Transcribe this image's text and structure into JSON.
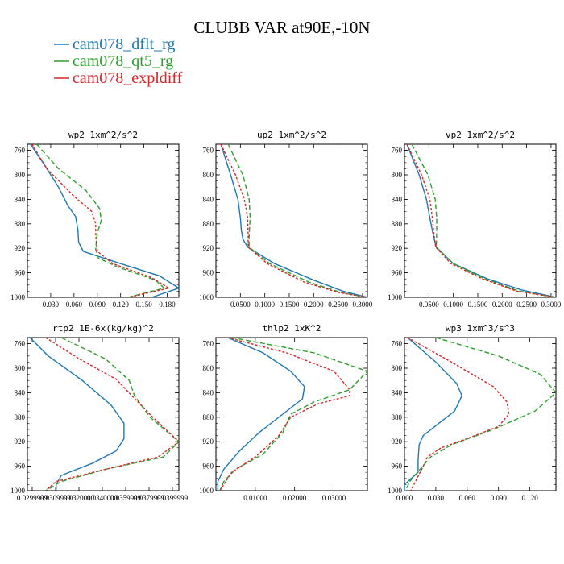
{
  "figure": {
    "title": "CLUBB VAR at90E,-10N",
    "legend": [
      {
        "label": "cam078_dflt_rg",
        "color": "#1f77b4"
      },
      {
        "label": "cam078_qt5_rg",
        "color": "#2ca02c"
      },
      {
        "label": "cam078_expldiff",
        "color": "#d62728"
      }
    ]
  },
  "chart_data": [
    {
      "type": "line",
      "title": "wp2  1xm^2/s^2",
      "xlim": [
        0.0,
        0.195
      ],
      "ylim": [
        1000,
        750
      ],
      "xticks": [
        0.03,
        0.06,
        0.09,
        0.12,
        0.15,
        0.18
      ],
      "xticklabels": [
        "0.030",
        "0.060",
        "0.090",
        "0.120",
        "0.150",
        "0.180"
      ],
      "yticks": [
        760,
        800,
        840,
        880,
        920,
        960,
        1000
      ],
      "series": [
        {
          "name": "cam078_dflt_rg",
          "color": "#1f77b4",
          "dash": "",
          "x": [
            0.004,
            0.02,
            0.04,
            0.052,
            0.062,
            0.065,
            0.066,
            0.072,
            0.12,
            0.17,
            0.195,
            0.16
          ],
          "y": [
            750,
            780,
            820,
            850,
            868,
            890,
            910,
            925,
            945,
            965,
            985,
            1000
          ]
        },
        {
          "name": "cam078_qt5_rg",
          "color": "#2ca02c",
          "dash": "6 3",
          "x": [
            0.012,
            0.04,
            0.075,
            0.093,
            0.095,
            0.09,
            0.088,
            0.09,
            0.115,
            0.165,
            0.176,
            0.13
          ],
          "y": [
            750,
            790,
            825,
            855,
            875,
            895,
            920,
            935,
            950,
            972,
            985,
            1000
          ]
        },
        {
          "name": "cam078_expldiff",
          "color": "#d62728",
          "dash": "3 2",
          "x": [
            0.006,
            0.025,
            0.06,
            0.083,
            0.088,
            0.088,
            0.09,
            0.11,
            0.16,
            0.182,
            0.13
          ],
          "y": [
            750,
            790,
            835,
            860,
            880,
            900,
            925,
            945,
            968,
            985,
            1000
          ]
        }
      ]
    },
    {
      "type": "line",
      "title": "up2  1xm^2/s^2",
      "xlim": [
        0.0,
        0.31
      ],
      "ylim": [
        1000,
        750
      ],
      "xticks": [
        0.05,
        0.1,
        0.15,
        0.2,
        0.25,
        0.3
      ],
      "xticklabels": [
        "0.0500",
        "0.1000",
        "0.1500",
        "0.2000",
        "0.2500",
        "0.3000"
      ],
      "yticks": [
        760,
        800,
        840,
        880,
        920,
        960,
        1000
      ],
      "series": [
        {
          "name": "cam078_dflt_rg",
          "color": "#1f77b4",
          "dash": "",
          "x": [
            0.01,
            0.03,
            0.045,
            0.05,
            0.052,
            0.055,
            0.065,
            0.12,
            0.2,
            0.26,
            0.31
          ],
          "y": [
            750,
            800,
            840,
            870,
            890,
            905,
            918,
            945,
            972,
            990,
            1000
          ]
        },
        {
          "name": "cam078_qt5_rg",
          "color": "#2ca02c",
          "dash": "6 3",
          "x": [
            0.025,
            0.055,
            0.068,
            0.07,
            0.068,
            0.068,
            0.11,
            0.19,
            0.255,
            0.31
          ],
          "y": [
            750,
            800,
            840,
            870,
            900,
            918,
            945,
            975,
            992,
            1000
          ]
        },
        {
          "name": "cam078_expldiff",
          "color": "#d62728",
          "dash": "3 2",
          "x": [
            0.01,
            0.04,
            0.058,
            0.065,
            0.066,
            0.066,
            0.105,
            0.18,
            0.25,
            0.31
          ],
          "y": [
            750,
            800,
            840,
            870,
            900,
            918,
            945,
            975,
            992,
            1000
          ]
        }
      ]
    },
    {
      "type": "line",
      "title": "vp2  1xm^2/s^2",
      "xlim": [
        0.0,
        0.31
      ],
      "ylim": [
        1000,
        750
      ],
      "xticks": [
        0.05,
        0.1,
        0.15,
        0.2,
        0.25,
        0.3
      ],
      "xticklabels": [
        "0.0500",
        "0.1000",
        "0.1500",
        "0.2000",
        "0.2500",
        "0.3000"
      ],
      "yticks": [
        760,
        800,
        840,
        880,
        920,
        960,
        1000
      ],
      "series": [
        {
          "name": "cam078_dflt_rg",
          "color": "#1f77b4",
          "dash": "",
          "x": [
            0.005,
            0.03,
            0.045,
            0.052,
            0.058,
            0.065,
            0.1,
            0.17,
            0.24,
            0.31
          ],
          "y": [
            750,
            800,
            840,
            870,
            895,
            918,
            945,
            970,
            988,
            1000
          ]
        },
        {
          "name": "cam078_qt5_rg",
          "color": "#2ca02c",
          "dash": "6 3",
          "x": [
            0.015,
            0.048,
            0.063,
            0.066,
            0.066,
            0.065,
            0.1,
            0.165,
            0.235,
            0.31
          ],
          "y": [
            750,
            800,
            840,
            870,
            895,
            918,
            945,
            970,
            990,
            1000
          ]
        },
        {
          "name": "cam078_expldiff",
          "color": "#d62728",
          "dash": "3 2",
          "x": [
            0.005,
            0.035,
            0.052,
            0.057,
            0.06,
            0.064,
            0.095,
            0.16,
            0.23,
            0.31
          ],
          "y": [
            750,
            800,
            840,
            870,
            895,
            918,
            945,
            970,
            990,
            1000
          ]
        }
      ]
    },
    {
      "type": "line",
      "title": "rtp2  1E-6x(kg/kg)^2",
      "xlim": [
        0.0255,
        0.0313
      ],
      "ylim": [
        1000,
        750
      ],
      "xticks": [
        0.0299999,
        0.0309999,
        0.032,
        0.034,
        0.0359999,
        0.0379999,
        0.0399999
      ],
      "xticklabels": [
        "0.0299999",
        "0.0309999",
        "0.0320000",
        "0.0340000",
        "0.0359999",
        "0.0379999",
        "0.0399999"
      ],
      "tick_positions_hint": "crowded",
      "yticks": [
        760,
        800,
        840,
        880,
        920,
        960,
        1000
      ],
      "series": [
        {
          "name": "cam078_dflt_rg",
          "color": "#1f77b4",
          "dash": "",
          "x": [
            0.0256,
            0.0263,
            0.0276,
            0.0287,
            0.0292,
            0.0292,
            0.0289,
            0.028,
            0.0268,
            0.0266,
            0.0266
          ],
          "y": [
            750,
            780,
            820,
            860,
            890,
            915,
            935,
            955,
            975,
            990,
            1000
          ]
        },
        {
          "name": "cam078_qt5_rg",
          "color": "#2ca02c",
          "dash": "6 3",
          "x": [
            0.0268,
            0.0285,
            0.0294,
            0.0296,
            0.0302,
            0.0313,
            0.0307,
            0.0285,
            0.0268,
            0.0262
          ],
          "y": [
            750,
            785,
            820,
            845,
            880,
            920,
            945,
            965,
            985,
            1000
          ]
        },
        {
          "name": "cam078_expldiff",
          "color": "#d62728",
          "dash": "3 2",
          "x": [
            0.0262,
            0.0275,
            0.0289,
            0.0295,
            0.0303,
            0.0313,
            0.0305,
            0.0283,
            0.0266,
            0.0262
          ],
          "y": [
            750,
            785,
            818,
            845,
            880,
            920,
            945,
            967,
            985,
            1000
          ]
        }
      ]
    },
    {
      "type": "line",
      "title": "thlp2  1xK^2",
      "xlim": [
        0.0,
        0.0385
      ],
      "ylim": [
        1000,
        750
      ],
      "xticks": [
        0.01,
        0.02,
        0.03
      ],
      "xticklabels": [
        "0.01000",
        "0.02000",
        "0.03000"
      ],
      "yticks": [
        760,
        800,
        840,
        880,
        920,
        960,
        1000
      ],
      "series": [
        {
          "name": "cam078_dflt_rg",
          "color": "#1f77b4",
          "dash": "",
          "x": [
            0.003,
            0.012,
            0.019,
            0.0225,
            0.022,
            0.017,
            0.011,
            0.006,
            0.002,
            0.0005,
            0.0005
          ],
          "y": [
            750,
            775,
            805,
            830,
            850,
            875,
            905,
            935,
            965,
            985,
            1000
          ]
        },
        {
          "name": "cam078_qt5_rg",
          "color": "#2ca02c",
          "dash": "6 3",
          "x": [
            0.004,
            0.025,
            0.0385,
            0.034,
            0.025,
            0.019,
            0.017,
            0.012,
            0.005,
            0.002,
            0.001
          ],
          "y": [
            750,
            775,
            805,
            835,
            855,
            875,
            905,
            940,
            965,
            985,
            1000
          ]
        },
        {
          "name": "cam078_expldiff",
          "color": "#d62728",
          "dash": "3 2",
          "x": [
            0.003,
            0.018,
            0.03,
            0.034,
            0.034,
            0.026,
            0.019,
            0.016,
            0.01,
            0.004,
            0.001
          ],
          "y": [
            750,
            775,
            805,
            835,
            845,
            858,
            880,
            910,
            945,
            970,
            1000
          ]
        }
      ]
    },
    {
      "type": "line",
      "title": "wp3  1xm^3/s^3",
      "xlim": [
        0.0,
        0.145
      ],
      "ylim": [
        1000,
        750
      ],
      "xticks": [
        0.0,
        0.03,
        0.06,
        0.09,
        0.12
      ],
      "xticklabels": [
        "0.000",
        "0.030",
        "0.060",
        "0.090",
        "0.120"
      ],
      "yticks": [
        760,
        800,
        840,
        880,
        920,
        960,
        1000
      ],
      "series": [
        {
          "name": "cam078_dflt_rg",
          "color": "#1f77b4",
          "dash": "",
          "x": [
            0.003,
            0.03,
            0.05,
            0.055,
            0.048,
            0.018,
            0.014,
            0.013,
            0.013,
            0.0,
            0.0
          ],
          "y": [
            750,
            790,
            825,
            845,
            870,
            910,
            925,
            950,
            970,
            990,
            1000
          ]
        },
        {
          "name": "cam078_qt5_rg",
          "color": "#2ca02c",
          "dash": "6 3",
          "x": [
            0.03,
            0.09,
            0.13,
            0.145,
            0.125,
            0.085,
            0.045,
            0.025,
            0.015,
            0.005,
            0.001
          ],
          "y": [
            750,
            780,
            810,
            840,
            870,
            900,
            925,
            945,
            965,
            985,
            1000
          ]
        },
        {
          "name": "cam078_expldiff",
          "color": "#d62728",
          "dash": "3 2",
          "x": [
            0.003,
            0.045,
            0.085,
            0.098,
            0.1,
            0.09,
            0.06,
            0.035,
            0.022,
            0.018,
            0.006
          ],
          "y": [
            750,
            790,
            830,
            855,
            875,
            895,
            915,
            930,
            945,
            960,
            1000
          ]
        }
      ]
    }
  ]
}
